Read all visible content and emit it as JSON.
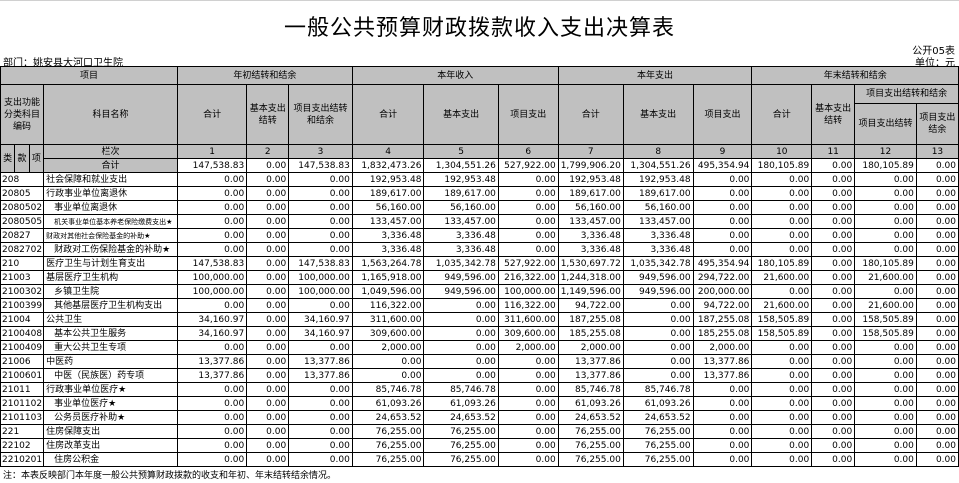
{
  "title": "一般公共预算财政拨款收入支出决算表",
  "form_no": "公开05表",
  "unit": "单位：元",
  "department": "部门：姚安县大河口卫生院",
  "headers": {
    "item": "项目",
    "code_label": "支出功能分类科目编码",
    "name_label": "科目名称",
    "lei": "类",
    "kuan": "款",
    "xiang": "项",
    "col_index_label": "栏次",
    "g1": "年初结转和结余",
    "g2": "本年收入",
    "g3": "本年支出",
    "g4": "年末结转和结余",
    "total": "合计",
    "basic_carry": "基本支出结转",
    "proj_carry_balance": "项目支出结转和结余",
    "basic": "基本支出",
    "project": "项目支出",
    "proj_carry": "项目支出结转",
    "proj_balance": "项目支出结余",
    "col_nums": [
      "1",
      "2",
      "3",
      "4",
      "5",
      "6",
      "7",
      "8",
      "9",
      "10",
      "11",
      "12",
      "13"
    ]
  },
  "total_row": {
    "label": "合计",
    "values": [
      "147,538.83",
      "0.00",
      "147,538.83",
      "1,832,473.26",
      "1,304,551.26",
      "527,922.00",
      "1,799,906.20",
      "1,304,551.26",
      "495,354.94",
      "180,105.89",
      "0.00",
      "180,105.89",
      "0.00"
    ]
  },
  "rows": [
    {
      "code": "208",
      "name": "社会保障和就业支出",
      "values": [
        "0.00",
        "0.00",
        "0.00",
        "192,953.48",
        "192,953.48",
        "0.00",
        "192,953.48",
        "192,953.48",
        "0.00",
        "0.00",
        "0.00",
        "0.00",
        "0.00"
      ]
    },
    {
      "code": "20805",
      "name": "行政事业单位离退休",
      "values": [
        "0.00",
        "0.00",
        "0.00",
        "189,617.00",
        "189,617.00",
        "0.00",
        "189,617.00",
        "189,617.00",
        "0.00",
        "0.00",
        "0.00",
        "0.00",
        "0.00"
      ]
    },
    {
      "code": "2080502",
      "name": "事业单位离退休",
      "values": [
        "0.00",
        "0.00",
        "0.00",
        "56,160.00",
        "56,160.00",
        "0.00",
        "56,160.00",
        "56,160.00",
        "0.00",
        "0.00",
        "0.00",
        "0.00",
        "0.00"
      ]
    },
    {
      "code": "2080505",
      "name": "机关事业单位基本养老保险缴费支出★",
      "values": [
        "0.00",
        "0.00",
        "0.00",
        "133,457.00",
        "133,457.00",
        "0.00",
        "133,457.00",
        "133,457.00",
        "0.00",
        "0.00",
        "0.00",
        "0.00",
        "0.00"
      ]
    },
    {
      "code": "20827",
      "name": "财政对其他社会保险基金的补助★",
      "values": [
        "0.00",
        "0.00",
        "0.00",
        "3,336.48",
        "3,336.48",
        "0.00",
        "3,336.48",
        "3,336.48",
        "0.00",
        "0.00",
        "0.00",
        "0.00",
        "0.00"
      ]
    },
    {
      "code": "2082702",
      "name": "财政对工伤保险基金的补助★",
      "values": [
        "0.00",
        "0.00",
        "0.00",
        "3,336.48",
        "3,336.48",
        "0.00",
        "3,336.48",
        "3,336.48",
        "0.00",
        "0.00",
        "0.00",
        "0.00",
        "0.00"
      ]
    },
    {
      "code": "210",
      "name": "医疗卫生与计划生育支出",
      "values": [
        "147,538.83",
        "0.00",
        "147,538.83",
        "1,563,264.78",
        "1,035,342.78",
        "527,922.00",
        "1,530,697.72",
        "1,035,342.78",
        "495,354.94",
        "180,105.89",
        "0.00",
        "180,105.89",
        "0.00"
      ]
    },
    {
      "code": "21003",
      "name": "基层医疗卫生机构",
      "values": [
        "100,000.00",
        "0.00",
        "100,000.00",
        "1,165,918.00",
        "949,596.00",
        "216,322.00",
        "1,244,318.00",
        "949,596.00",
        "294,722.00",
        "21,600.00",
        "0.00",
        "21,600.00",
        "0.00"
      ]
    },
    {
      "code": "2100302",
      "name": "乡镇卫生院",
      "values": [
        "100,000.00",
        "0.00",
        "100,000.00",
        "1,049,596.00",
        "949,596.00",
        "100,000.00",
        "1,149,596.00",
        "949,596.00",
        "200,000.00",
        "0.00",
        "0.00",
        "0.00",
        "0.00"
      ]
    },
    {
      "code": "2100399",
      "name": "其他基层医疗卫生机构支出",
      "values": [
        "0.00",
        "0.00",
        "0.00",
        "116,322.00",
        "0.00",
        "116,322.00",
        "94,722.00",
        "0.00",
        "94,722.00",
        "21,600.00",
        "0.00",
        "21,600.00",
        "0.00"
      ]
    },
    {
      "code": "21004",
      "name": "公共卫生",
      "values": [
        "34,160.97",
        "0.00",
        "34,160.97",
        "311,600.00",
        "0.00",
        "311,600.00",
        "187,255.08",
        "0.00",
        "187,255.08",
        "158,505.89",
        "0.00",
        "158,505.89",
        "0.00"
      ]
    },
    {
      "code": "2100408",
      "name": "基本公共卫生服务",
      "values": [
        "34,160.97",
        "0.00",
        "34,160.97",
        "309,600.00",
        "0.00",
        "309,600.00",
        "185,255.08",
        "0.00",
        "185,255.08",
        "158,505.89",
        "0.00",
        "158,505.89",
        "0.00"
      ]
    },
    {
      "code": "2100409",
      "name": "重大公共卫生专项",
      "values": [
        "0.00",
        "0.00",
        "0.00",
        "2,000.00",
        "0.00",
        "2,000.00",
        "2,000.00",
        "0.00",
        "2,000.00",
        "0.00",
        "0.00",
        "0.00",
        "0.00"
      ]
    },
    {
      "code": "21006",
      "name": "中医药",
      "values": [
        "13,377.86",
        "0.00",
        "13,377.86",
        "0.00",
        "0.00",
        "0.00",
        "13,377.86",
        "0.00",
        "13,377.86",
        "0.00",
        "0.00",
        "0.00",
        "0.00"
      ]
    },
    {
      "code": "2100601",
      "name": "中医（民族医）药专项",
      "values": [
        "13,377.86",
        "0.00",
        "13,377.86",
        "0.00",
        "0.00",
        "0.00",
        "13,377.86",
        "0.00",
        "13,377.86",
        "0.00",
        "0.00",
        "0.00",
        "0.00"
      ]
    },
    {
      "code": "21011",
      "name": "行政事业单位医疗★",
      "values": [
        "0.00",
        "0.00",
        "0.00",
        "85,746.78",
        "85,746.78",
        "0.00",
        "85,746.78",
        "85,746.78",
        "0.00",
        "0.00",
        "0.00",
        "0.00",
        "0.00"
      ]
    },
    {
      "code": "2101102",
      "name": "事业单位医疗★",
      "values": [
        "0.00",
        "0.00",
        "0.00",
        "61,093.26",
        "61,093.26",
        "0.00",
        "61,093.26",
        "61,093.26",
        "0.00",
        "0.00",
        "0.00",
        "0.00",
        "0.00"
      ]
    },
    {
      "code": "2101103",
      "name": "公务员医疗补助★",
      "values": [
        "0.00",
        "0.00",
        "0.00",
        "24,653.52",
        "24,653.52",
        "0.00",
        "24,653.52",
        "24,653.52",
        "0.00",
        "0.00",
        "0.00",
        "0.00",
        "0.00"
      ]
    },
    {
      "code": "221",
      "name": "住房保障支出",
      "values": [
        "0.00",
        "0.00",
        "0.00",
        "76,255.00",
        "76,255.00",
        "0.00",
        "76,255.00",
        "76,255.00",
        "0.00",
        "0.00",
        "0.00",
        "0.00",
        "0.00"
      ]
    },
    {
      "code": "22102",
      "name": "住房改革支出",
      "values": [
        "0.00",
        "0.00",
        "0.00",
        "76,255.00",
        "76,255.00",
        "0.00",
        "76,255.00",
        "76,255.00",
        "0.00",
        "0.00",
        "0.00",
        "0.00",
        "0.00"
      ]
    },
    {
      "code": "2210201",
      "name": "住房公积金",
      "values": [
        "0.00",
        "0.00",
        "0.00",
        "76,255.00",
        "76,255.00",
        "0.00",
        "76,255.00",
        "76,255.00",
        "0.00",
        "0.00",
        "0.00",
        "0.00",
        "0.00"
      ]
    }
  ],
  "note": "注：本表反映部门本年度一般公共预算财政拨款的收支和年初、年末结转结余情况。"
}
